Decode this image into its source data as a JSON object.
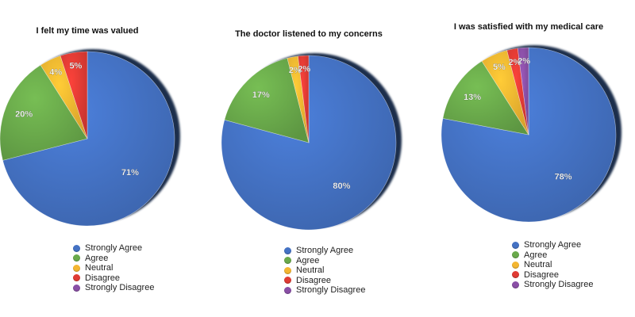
{
  "colors": {
    "Strongly Agree": "#4472c4",
    "Agree": "#6aaa4b",
    "Neutral": "#f4b631",
    "Disagree": "#e03b34",
    "Strongly Disagree": "#8a4fa6",
    "shadow": "#1c2d4c"
  },
  "chart_data": [
    {
      "type": "pie",
      "title": "I felt my time was valued",
      "categories": [
        "Strongly Agree",
        "Agree",
        "Neutral",
        "Disagree",
        "Strongly Disagree"
      ],
      "values": [
        71,
        20,
        4,
        5,
        0
      ],
      "labels": [
        "71%",
        "20%",
        "4%",
        "5%",
        ""
      ],
      "legend_position": "bottom"
    },
    {
      "type": "pie",
      "title": "The doctor listened to my concerns",
      "categories": [
        "Strongly Agree",
        "Agree",
        "Neutral",
        "Disagree",
        "Strongly Disagree"
      ],
      "values": [
        80,
        17,
        2,
        2,
        0
      ],
      "labels": [
        "80%",
        "17%",
        "2%",
        "2%",
        ""
      ],
      "legend_position": "bottom"
    },
    {
      "type": "pie",
      "title": "I was satisfied with my medical care",
      "categories": [
        "Strongly Agree",
        "Agree",
        "Neutral",
        "Disagree",
        "Strongly Disagree"
      ],
      "values": [
        78,
        13,
        5,
        2,
        2
      ],
      "labels": [
        "78%",
        "13%",
        "5%",
        "2%",
        "2%"
      ],
      "legend_position": "bottom"
    }
  ]
}
